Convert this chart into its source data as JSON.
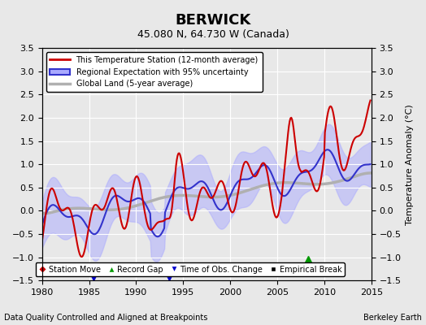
{
  "title": "BERWICK",
  "subtitle": "45.080 N, 64.730 W (Canada)",
  "xlabel_left": "Data Quality Controlled and Aligned at Breakpoints",
  "xlabel_right": "Berkeley Earth",
  "ylabel_right": "Temperature Anomaly (°C)",
  "xlim": [
    1980,
    2015
  ],
  "ylim": [
    -1.5,
    3.5
  ],
  "yticks": [
    -1.5,
    -1,
    -0.5,
    0,
    0.5,
    1,
    1.5,
    2,
    2.5,
    3,
    3.5
  ],
  "xticks": [
    1980,
    1985,
    1990,
    1995,
    2000,
    2005,
    2010,
    2015
  ],
  "bg_color": "#e8e8e8",
  "grid_color": "#ffffff",
  "station_line_color": "#cc0000",
  "regional_line_color": "#3333cc",
  "regional_fill_color": "#aaaaff",
  "global_line_color": "#b0b0b0",
  "record_gap_x": 2008.3,
  "record_gap_y": -1.05,
  "obs_change_x1": 1985.5,
  "obs_change_y1": -1.4,
  "obs_change_x2": 1993.5,
  "obs_change_y2": -1.4,
  "legend_items": [
    {
      "label": "This Temperature Station (12-month average)",
      "color": "#cc0000",
      "lw": 2
    },
    {
      "label": "Regional Expectation with 95% uncertainty",
      "color": "#3333cc",
      "lw": 2
    },
    {
      "label": "Global Land (5-year average)",
      "color": "#b0b0b0",
      "lw": 2
    }
  ]
}
